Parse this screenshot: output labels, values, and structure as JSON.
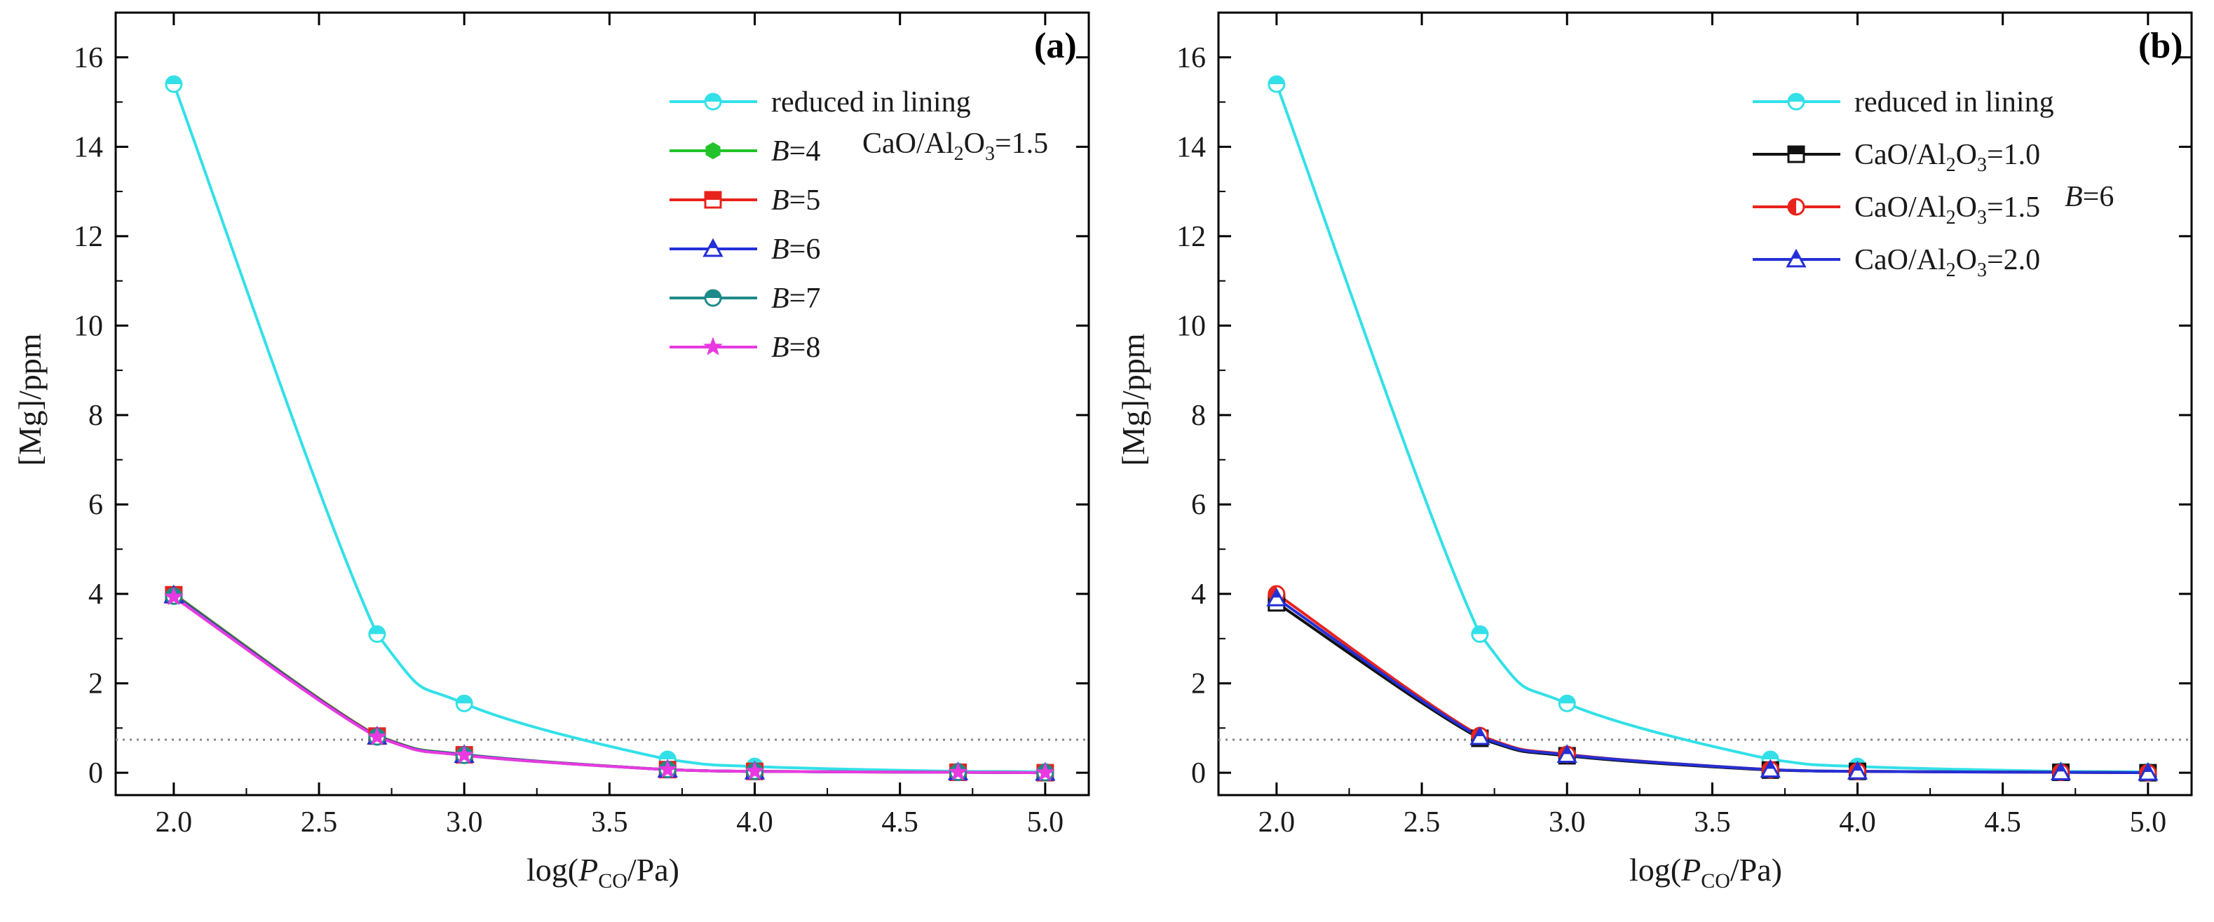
{
  "chart_data": [
    {
      "type": "line",
      "panel": "(a)",
      "xlabel_prefix": "log(",
      "xlabel_var": "P",
      "xlabel_sub": "CO",
      "xlabel_suffix": "/Pa)",
      "ylabel": "[Mg]/ppm",
      "xlim": [
        1.8,
        5.15
      ],
      "ylim": [
        -0.5,
        17
      ],
      "xticks": [
        "2.0",
        "2.5",
        "3.0",
        "3.5",
        "4.0",
        "4.5",
        "5.0"
      ],
      "yticks": [
        "0",
        "2",
        "4",
        "6",
        "8",
        "10",
        "12",
        "14",
        "16"
      ],
      "x": [
        2.0,
        2.7,
        3.0,
        3.7,
        4.0,
        4.7,
        5.0
      ],
      "annotation": {
        "prefix": "CaO/Al",
        "sub1": "2",
        "mid": "O",
        "sub2": "3",
        "suffix": "=1.5"
      },
      "series": [
        {
          "name": "reduced in lining",
          "label_italic": "",
          "label_rest": "reduced in lining",
          "color": "#33e0e8",
          "marker": "circle-half",
          "values": [
            15.4,
            3.1,
            1.55,
            0.3,
            0.14,
            0.03,
            0.02
          ]
        },
        {
          "name": "B=4",
          "label_italic": "B",
          "label_rest": "=4",
          "color": "#22c32a",
          "marker": "hexagon",
          "values": [
            4.0,
            0.83,
            0.41,
            0.07,
            0.03,
            0.01,
            0.0
          ]
        },
        {
          "name": "B=5",
          "label_italic": "B",
          "label_rest": "=5",
          "color": "#e8231c",
          "marker": "square-half",
          "values": [
            3.98,
            0.82,
            0.4,
            0.07,
            0.03,
            0.01,
            0.0
          ]
        },
        {
          "name": "B=6",
          "label_italic": "B",
          "label_rest": "=6",
          "color": "#2330d6",
          "marker": "triangle-half",
          "values": [
            3.97,
            0.81,
            0.4,
            0.07,
            0.03,
            0.01,
            0.0
          ]
        },
        {
          "name": "B=7",
          "label_italic": "B",
          "label_rest": "=7",
          "color": "#1f8a8a",
          "marker": "circle-half-top",
          "values": [
            3.95,
            0.8,
            0.39,
            0.07,
            0.03,
            0.01,
            0.0
          ]
        },
        {
          "name": "B=8",
          "label_italic": "B",
          "label_rest": "=8",
          "color": "#e83ae0",
          "marker": "star",
          "values": [
            3.93,
            0.8,
            0.39,
            0.07,
            0.03,
            0.01,
            0.0
          ]
        }
      ]
    },
    {
      "type": "line",
      "panel": "(b)",
      "xlabel_prefix": "log(",
      "xlabel_var": "P",
      "xlabel_sub": "CO",
      "xlabel_suffix": "/Pa)",
      "ylabel": "[Mg]/ppm",
      "xlim": [
        1.8,
        5.15
      ],
      "ylim": [
        -0.5,
        17
      ],
      "xticks": [
        "2.0",
        "2.5",
        "3.0",
        "3.5",
        "4.0",
        "4.5",
        "5.0"
      ],
      "yticks": [
        "0",
        "2",
        "4",
        "6",
        "8",
        "10",
        "12",
        "14",
        "16"
      ],
      "x": [
        2.0,
        2.7,
        3.0,
        3.7,
        4.0,
        4.7,
        5.0
      ],
      "annotation": {
        "italic": "B",
        "rest": "=6"
      },
      "series": [
        {
          "name": "reduced in lining",
          "label_plain": "reduced in lining",
          "color": "#33e0e8",
          "marker": "circle-half",
          "values": [
            15.4,
            3.1,
            1.55,
            0.3,
            0.14,
            0.03,
            0.02
          ]
        },
        {
          "name": "CaO/Al2O3=1.0",
          "label_a": "CaO/Al",
          "label_s1": "2",
          "label_b": "O",
          "label_s2": "3",
          "label_c": "=1.0",
          "color": "#111111",
          "marker": "square-half",
          "values": [
            3.8,
            0.77,
            0.38,
            0.06,
            0.03,
            0.01,
            0.0
          ]
        },
        {
          "name": "CaO/Al2O3=1.5",
          "label_a": "CaO/Al",
          "label_s1": "2",
          "label_b": "O",
          "label_s2": "3",
          "label_c": "=1.5",
          "color": "#e8231c",
          "marker": "circle-half-left",
          "values": [
            4.0,
            0.83,
            0.41,
            0.07,
            0.03,
            0.01,
            0.0
          ]
        },
        {
          "name": "CaO/Al2O3=2.0",
          "label_a": "CaO/Al",
          "label_s1": "2",
          "label_b": "O",
          "label_s2": "3",
          "label_c": "=2.0",
          "color": "#2330d6",
          "marker": "triangle-half",
          "values": [
            3.9,
            0.8,
            0.4,
            0.07,
            0.03,
            0.01,
            0.0
          ]
        }
      ]
    }
  ]
}
